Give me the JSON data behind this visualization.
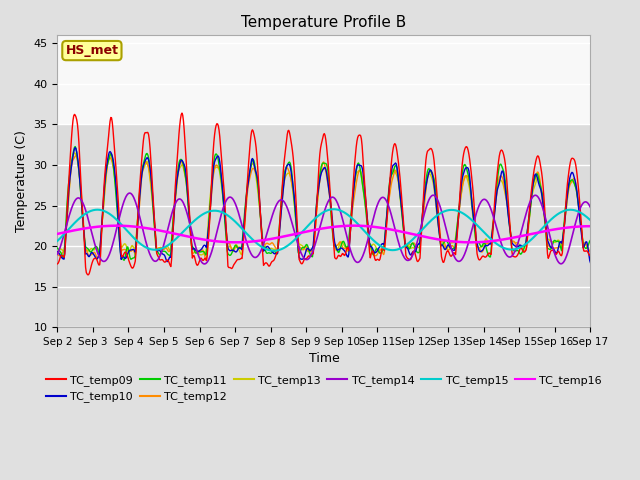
{
  "title": "Temperature Profile B",
  "xlabel": "Time",
  "ylabel": "Temperature (C)",
  "ylim": [
    10,
    46
  ],
  "yticks": [
    10,
    15,
    20,
    25,
    30,
    35,
    40,
    45
  ],
  "annotation_text": "HS_met",
  "annotation_color": "#8B0000",
  "annotation_bg": "#FFFF99",
  "annotation_edge": "#AAA000",
  "series_colors": {
    "TC_temp09": "#FF0000",
    "TC_temp10": "#0000CC",
    "TC_temp11": "#00CC00",
    "TC_temp12": "#FF8C00",
    "TC_temp13": "#CCCC00",
    "TC_temp14": "#9900CC",
    "TC_temp15": "#00CCCC",
    "TC_temp16": "#FF00FF"
  },
  "bg_color": "#E0E0E0",
  "plot_bg_lower": "#DCDCDC",
  "plot_bg_upper": "#F0F0F0",
  "grid_color": "#FFFFFF",
  "x_tick_labels": [
    "Sep 2",
    "Sep 3",
    "Sep 4",
    "Sep 5",
    "Sep 6",
    "Sep 7",
    "Sep 8",
    "Sep 9",
    "Sep 10",
    "Sep 11",
    "Sep 12",
    "Sep 13",
    "Sep 14",
    "Sep 15",
    "Sep 16",
    "Sep 17"
  ],
  "n_points": 720
}
